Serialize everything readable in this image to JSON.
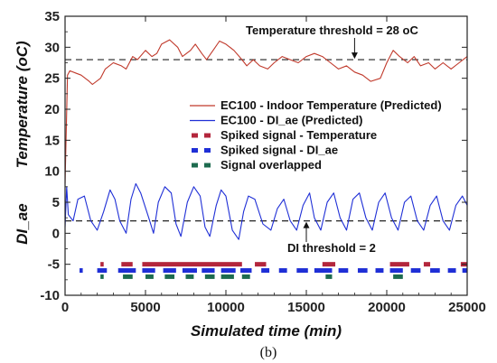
{
  "chart_data": {
    "type": "line",
    "xlabel": "Simulated time (min)",
    "ylabel_top": "Temperature (",
    "ylabel_top_unit": "oC)",
    "ylabel_bottom": "DI_ae",
    "xlim": [
      0,
      25000
    ],
    "ylim": [
      -10,
      35
    ],
    "x_ticks": [
      "0",
      "5000",
      "10000",
      "15000",
      "20000",
      "25000"
    ],
    "y_ticks": [
      "-10",
      "-5",
      "0",
      "5",
      "10",
      "15",
      "20",
      "25",
      "30",
      "35"
    ],
    "grid": false,
    "legend_position": "center-right",
    "caption": "(b)",
    "series": [
      {
        "name": "EC100 - Indoor Temperature (Predicted)",
        "color": "#c0392b",
        "x": [
          0,
          150,
          300,
          700,
          1000,
          1500,
          1700,
          2200,
          2500,
          3000,
          3500,
          3800,
          4200,
          4500,
          5000,
          5400,
          5700,
          6000,
          6500,
          7000,
          7300,
          7800,
          8100,
          8500,
          8800,
          9200,
          9600,
          10000,
          10500,
          11000,
          11300,
          11700,
          12100,
          12600,
          13000,
          13500,
          14000,
          14500,
          15000,
          15500,
          16000,
          16500,
          17000,
          17500,
          18000,
          18500,
          19000,
          19600,
          20000,
          20400,
          20800,
          21300,
          21700,
          22100,
          22600,
          23000,
          23500,
          24000,
          24500,
          25000
        ],
        "values": [
          8,
          25.5,
          26.2,
          25.8,
          25.5,
          24.5,
          24.0,
          25.0,
          26.5,
          27.5,
          27.0,
          26.5,
          28.5,
          28.0,
          29.5,
          28.5,
          29.0,
          30.5,
          31.2,
          30.0,
          28.5,
          29.5,
          30.5,
          29.0,
          28.0,
          29.5,
          31.0,
          30.5,
          29.5,
          28.0,
          27.0,
          28.0,
          27.0,
          26.5,
          27.5,
          28.5,
          28.0,
          27.5,
          28.5,
          29.0,
          28.5,
          27.5,
          26.5,
          27.0,
          26.0,
          25.5,
          24.5,
          25.0,
          27.5,
          29.5,
          28.5,
          27.5,
          28.5,
          27.0,
          27.5,
          26.5,
          27.5,
          26.5,
          27.5,
          28.5
        ]
      },
      {
        "name": "EC100 - DI_ae (Predicted)",
        "color": "#1f2fd6",
        "x": [
          0,
          100,
          200,
          500,
          800,
          1200,
          1600,
          2000,
          2400,
          2800,
          3100,
          3400,
          3800,
          4100,
          4400,
          4700,
          5200,
          5500,
          5800,
          6200,
          6600,
          6900,
          7200,
          7600,
          8000,
          8400,
          8700,
          9000,
          9400,
          9700,
          10000,
          10400,
          10800,
          11100,
          11400,
          11800,
          12300,
          12800,
          13200,
          13600,
          14000,
          14400,
          14800,
          15200,
          15500,
          15900,
          16300,
          16700,
          17100,
          17500,
          17900,
          18300,
          18700,
          19100,
          19500,
          19900,
          20300,
          20700,
          21100,
          21500,
          21900,
          22300,
          22700,
          23100,
          23500,
          23900,
          24300,
          24700,
          25000
        ],
        "values": [
          1,
          7.5,
          3.0,
          2.0,
          5.5,
          6.0,
          2.0,
          0.5,
          3.5,
          7.0,
          5.5,
          2.0,
          0.0,
          5.5,
          8.0,
          6.5,
          2.5,
          0.0,
          5.0,
          7.5,
          6.5,
          1.5,
          -0.5,
          5.0,
          7.5,
          6.0,
          1.0,
          -0.5,
          4.5,
          7.0,
          6.0,
          0.5,
          -1.0,
          3.5,
          6.0,
          5.5,
          1.5,
          0.5,
          4.0,
          5.5,
          2.0,
          0.5,
          4.5,
          6.5,
          2.5,
          0.5,
          5.0,
          6.5,
          2.5,
          0.5,
          5.5,
          6.5,
          2.5,
          0.5,
          5.0,
          6.5,
          2.5,
          0.5,
          5.0,
          6.0,
          2.0,
          0.5,
          4.5,
          6.0,
          2.0,
          0.5,
          4.5,
          6.0,
          4.5
        ]
      }
    ],
    "spike_series": [
      {
        "name": "Spiked signal - Temperature",
        "color": "#b3263c",
        "y": -5,
        "segments": [
          [
            2200,
            2400
          ],
          [
            3500,
            4200
          ],
          [
            4800,
            11000
          ],
          [
            11800,
            12500
          ],
          [
            16000,
            16800
          ],
          [
            20200,
            21400
          ],
          [
            22300,
            22700
          ],
          [
            24600,
            25000
          ]
        ]
      },
      {
        "name": "Spiked signal - DI_ae",
        "color": "#1f2fd6",
        "y": -6,
        "segments": [
          [
            900,
            1100
          ],
          [
            2000,
            2600
          ],
          [
            3300,
            4400
          ],
          [
            4800,
            5600
          ],
          [
            6100,
            6900
          ],
          [
            7300,
            8200
          ],
          [
            8500,
            9300
          ],
          [
            9700,
            10600
          ],
          [
            10900,
            11600
          ],
          [
            12200,
            12700
          ],
          [
            13300,
            13800
          ],
          [
            14400,
            15100
          ],
          [
            15500,
            16600
          ],
          [
            17000,
            17600
          ],
          [
            18200,
            18800
          ],
          [
            19300,
            19800
          ],
          [
            20200,
            21000
          ],
          [
            21500,
            22100
          ],
          [
            22700,
            23300
          ],
          [
            23800,
            24300
          ],
          [
            24700,
            25000
          ]
        ]
      },
      {
        "name": "Signal overlapped",
        "color": "#1d6b4f",
        "y": -7,
        "segments": [
          [
            2200,
            2400
          ],
          [
            3600,
            4200
          ],
          [
            5000,
            5500
          ],
          [
            6200,
            6800
          ],
          [
            7500,
            8000
          ],
          [
            8700,
            9300
          ],
          [
            9700,
            10500
          ],
          [
            11000,
            11500
          ],
          [
            16200,
            16600
          ],
          [
            20400,
            21000
          ]
        ]
      }
    ],
    "reference_lines": [
      {
        "y": 28,
        "color": "#222",
        "dashed": true
      },
      {
        "y": 2,
        "color": "#222",
        "dashed": true
      }
    ],
    "annotations": [
      {
        "text": "Temperature threshold = 28 oC",
        "pointer_x": 18000,
        "pointer_y": 28
      },
      {
        "text": "DI threshold = 2",
        "pointer_x": 15000,
        "pointer_y": 2
      }
    ]
  }
}
